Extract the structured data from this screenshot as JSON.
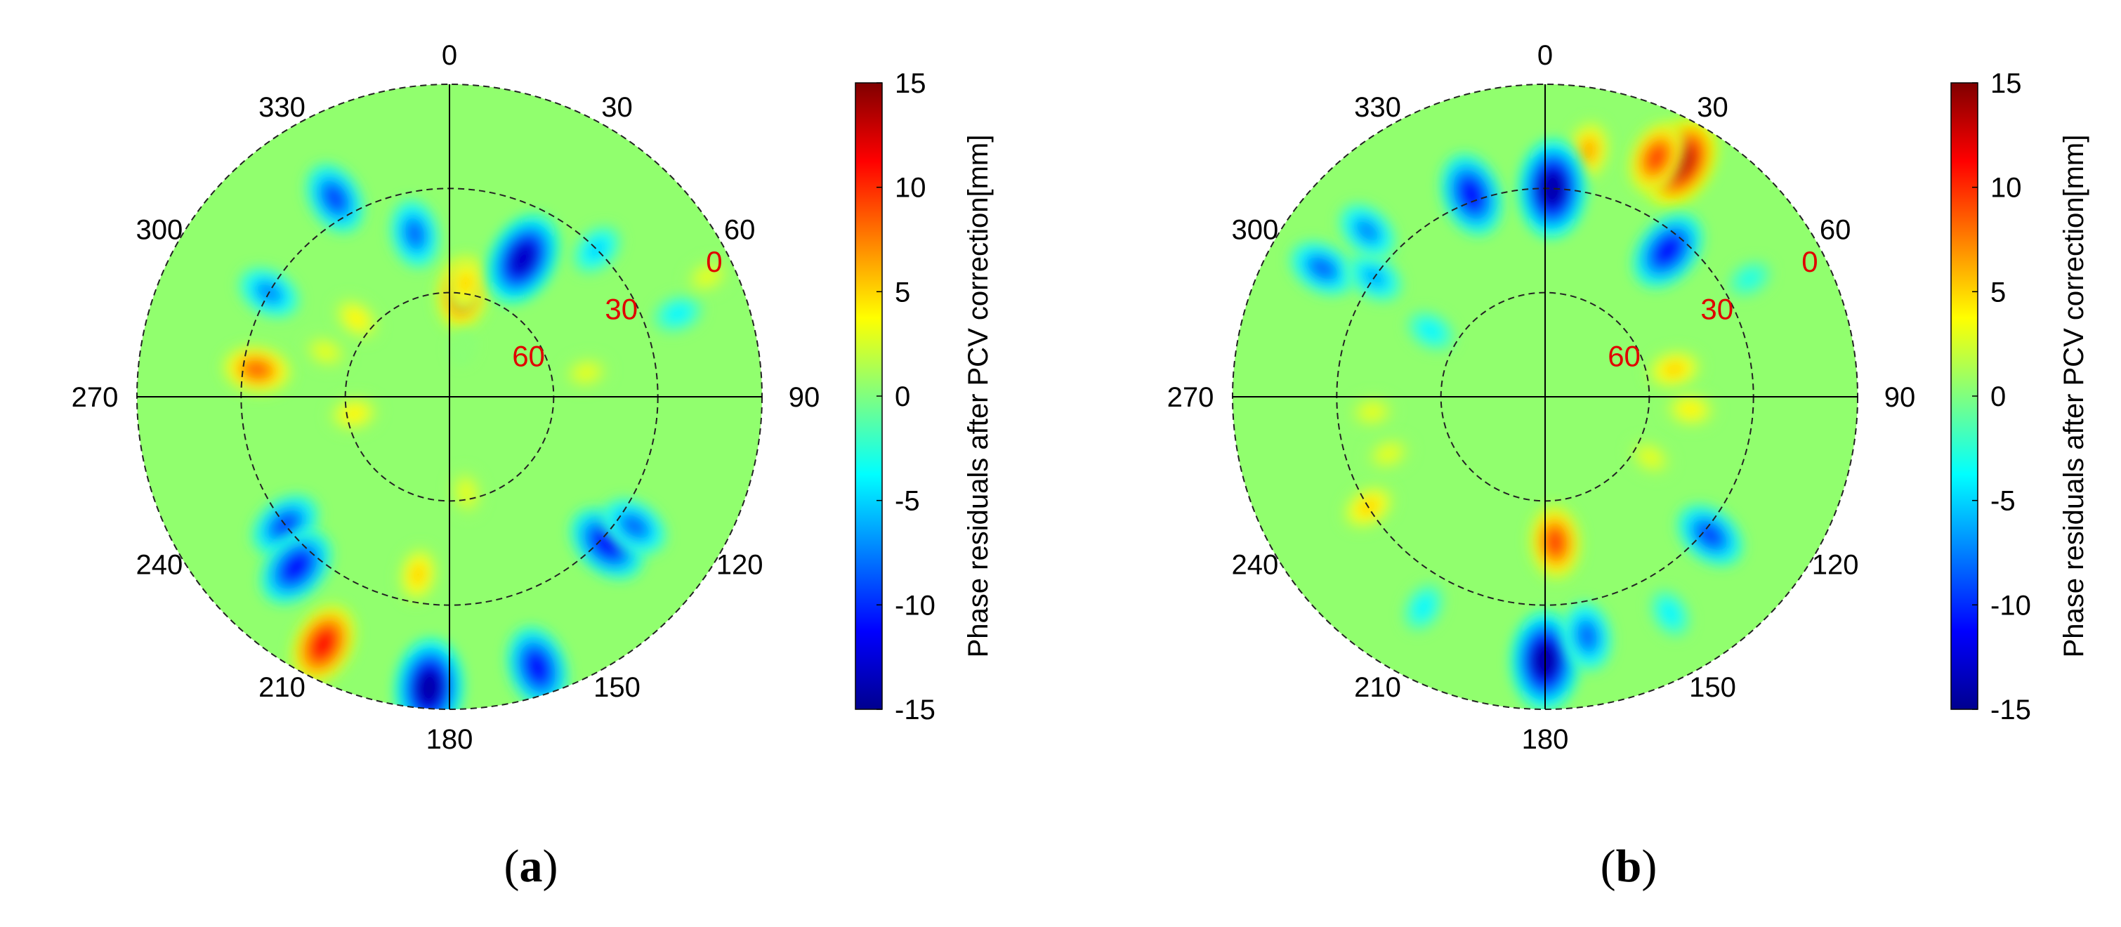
{
  "figure": {
    "panels": [
      {
        "caption_letter": "a"
      },
      {
        "caption_letter": "b"
      }
    ],
    "caption_open": "(",
    "caption_close": ")"
  },
  "chart_data": [
    {
      "type": "heatmap",
      "subtype": "polar-contour",
      "panel": "a",
      "title": "",
      "azimuth_ticks": [
        "0",
        "30",
        "60",
        "90",
        "120",
        "150",
        "180",
        "210",
        "240",
        "270",
        "300",
        "330"
      ],
      "elevation_ticks": [
        "0",
        "30",
        "60"
      ],
      "elevation_range": [
        0,
        90
      ],
      "colorbar": {
        "label": "Phase residuals after PCV correction[mm]",
        "range": [
          -15,
          15
        ],
        "ticks": [
          "15",
          "10",
          "5",
          "0",
          "-5",
          "-10",
          "-15"
        ],
        "colormap": "jet"
      },
      "features": [
        {
          "az": 7,
          "el": 60,
          "value": 9
        },
        {
          "az": 8,
          "el": 57,
          "value": 5
        },
        {
          "az": 28,
          "el": 45,
          "value": -13
        },
        {
          "az": 15,
          "el": 75,
          "value": 0.5
        },
        {
          "az": 348,
          "el": 42,
          "value": -8
        },
        {
          "az": 330,
          "el": 24,
          "value": -9
        },
        {
          "az": 300,
          "el": 30,
          "value": -7
        },
        {
          "az": 278,
          "el": 34,
          "value": 8
        },
        {
          "az": 290,
          "el": 52,
          "value": 3
        },
        {
          "az": 232,
          "el": 30,
          "value": -9
        },
        {
          "az": 222,
          "el": 24,
          "value": -11
        },
        {
          "az": 207,
          "el": 10,
          "value": 11
        },
        {
          "az": 184,
          "el": 6,
          "value": -14
        },
        {
          "az": 162,
          "el": 8,
          "value": -11
        },
        {
          "az": 133,
          "el": 28,
          "value": -11
        },
        {
          "az": 125,
          "el": 25,
          "value": -8
        },
        {
          "az": 190,
          "el": 38,
          "value": 5
        },
        {
          "az": 80,
          "el": 50,
          "value": 3
        },
        {
          "az": 260,
          "el": 62,
          "value": 4
        },
        {
          "az": 170,
          "el": 62,
          "value": 3
        },
        {
          "az": 45,
          "el": 30,
          "value": -5
        },
        {
          "az": 70,
          "el": 20,
          "value": -4
        },
        {
          "az": 65,
          "el": 8,
          "value": 3
        },
        {
          "az": 310,
          "el": 55,
          "value": 4
        }
      ]
    },
    {
      "type": "heatmap",
      "subtype": "polar-contour",
      "panel": "b",
      "title": "",
      "azimuth_ticks": [
        "0",
        "30",
        "60",
        "90",
        "120",
        "150",
        "180",
        "210",
        "240",
        "270",
        "300",
        "330"
      ],
      "elevation_ticks": [
        "0",
        "30",
        "60"
      ],
      "elevation_range": [
        0,
        90
      ],
      "colorbar": {
        "label": "Phase residuals after PCV correction[mm]",
        "range": [
          -15,
          15
        ],
        "ticks": [
          "15",
          "10",
          "5",
          "0",
          "-5",
          "-10",
          "-15"
        ],
        "colormap": "jet"
      },
      "features": [
        {
          "az": 30,
          "el": 12,
          "value": 13
        },
        {
          "az": 25,
          "el": 14,
          "value": 9
        },
        {
          "az": 10,
          "el": 18,
          "value": 6
        },
        {
          "az": 2,
          "el": 30,
          "value": -14
        },
        {
          "az": 340,
          "el": 28,
          "value": -11
        },
        {
          "az": 40,
          "el": 35,
          "value": -11
        },
        {
          "az": 300,
          "el": 16,
          "value": -8
        },
        {
          "az": 305,
          "el": 30,
          "value": -6
        },
        {
          "az": 313,
          "el": 20,
          "value": -7
        },
        {
          "az": 78,
          "el": 52,
          "value": 5
        },
        {
          "az": 95,
          "el": 48,
          "value": 4
        },
        {
          "az": 176,
          "el": 48,
          "value": 9
        },
        {
          "az": 180,
          "el": 14,
          "value": -14
        },
        {
          "az": 170,
          "el": 20,
          "value": -8
        },
        {
          "az": 130,
          "el": 28,
          "value": -9
        },
        {
          "az": 238,
          "el": 30,
          "value": 5
        },
        {
          "az": 250,
          "el": 42,
          "value": 3
        },
        {
          "az": 265,
          "el": 40,
          "value": 3
        },
        {
          "az": 300,
          "el": 52,
          "value": -4
        },
        {
          "az": 150,
          "el": 18,
          "value": -4
        },
        {
          "az": 210,
          "el": 20,
          "value": -4
        },
        {
          "az": 60,
          "el": 22,
          "value": -3
        },
        {
          "az": 120,
          "el": 55,
          "value": 3
        }
      ]
    }
  ]
}
